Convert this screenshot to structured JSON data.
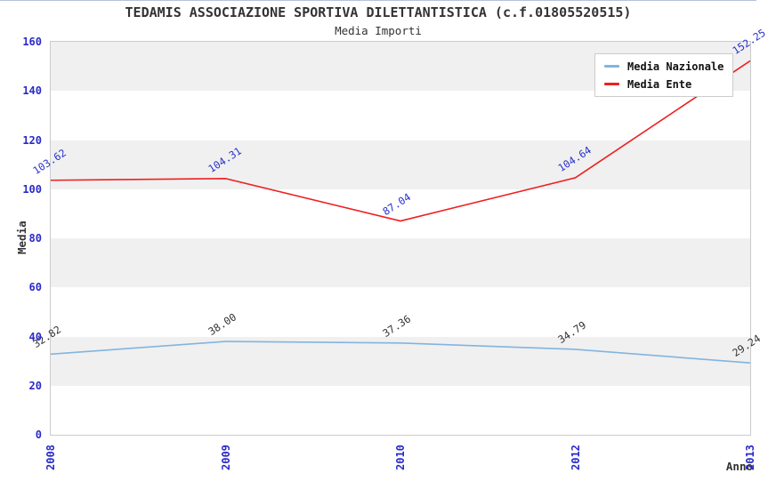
{
  "header": {
    "title": "TEDAMIS ASSOCIAZIONE SPORTIVA DILETTANTISTICA (c.f.01805520515)",
    "subtitle": "Media Importi"
  },
  "chart_data": {
    "type": "line",
    "title": "Media Importi",
    "xlabel": "Anno",
    "ylabel": "Media",
    "categories": [
      "2008",
      "2009",
      "2010",
      "2012",
      "2013"
    ],
    "series": [
      {
        "name": "Media Nazionale",
        "color": "#82b4e1",
        "label_color": "#333333",
        "values": [
          32.82,
          38.0,
          37.36,
          34.79,
          29.24
        ],
        "labels": [
          "32.82",
          "38.00",
          "37.36",
          "34.79",
          "29.24"
        ]
      },
      {
        "name": "Media Ente",
        "color": "#ee2020",
        "label_color": "#2832c8",
        "values": [
          103.62,
          104.31,
          87.04,
          104.64,
          152.25
        ],
        "labels": [
          "103.62",
          "104.31",
          "87.04",
          "104.64",
          "152.25"
        ]
      }
    ],
    "ylim": [
      0,
      160
    ],
    "y_ticks": [
      0,
      20,
      40,
      60,
      80,
      100,
      120,
      140,
      160
    ],
    "grid": "horizontal-bands",
    "band_colors": [
      "#f0f0f0",
      "#ffffff"
    ],
    "legend_position": "top-right"
  },
  "colors": {
    "tick_text": "#2a2ac8",
    "axis_text": "#333333",
    "plot_border": "#cbcbcb",
    "legend_border": "#cccccc"
  }
}
